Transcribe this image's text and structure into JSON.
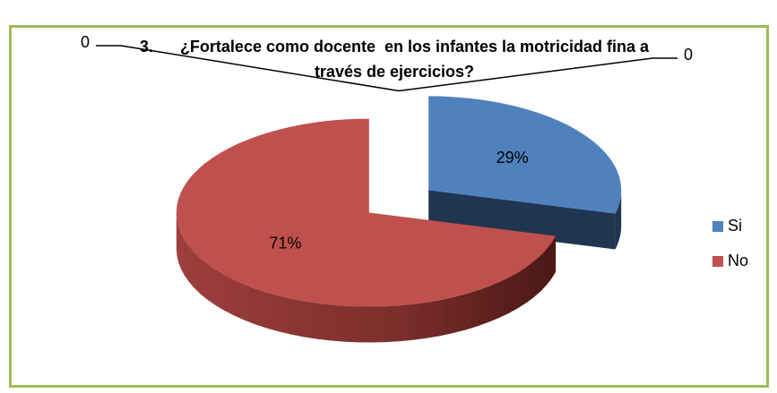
{
  "chart_data": {
    "type": "pie3d",
    "title": "3.      ¿Fortalece como docente  en los infantes la motricidad fina a través de ejercicios?",
    "categories": [
      "Si",
      "No",
      null,
      null
    ],
    "values": [
      29,
      71,
      0,
      0
    ],
    "value_labels": [
      "29%",
      "71%",
      "0",
      "0"
    ],
    "colors": [
      "#4f81bd",
      "#c0504d",
      "#9bbb59",
      "#8064a2"
    ],
    "legend": "right"
  }
}
